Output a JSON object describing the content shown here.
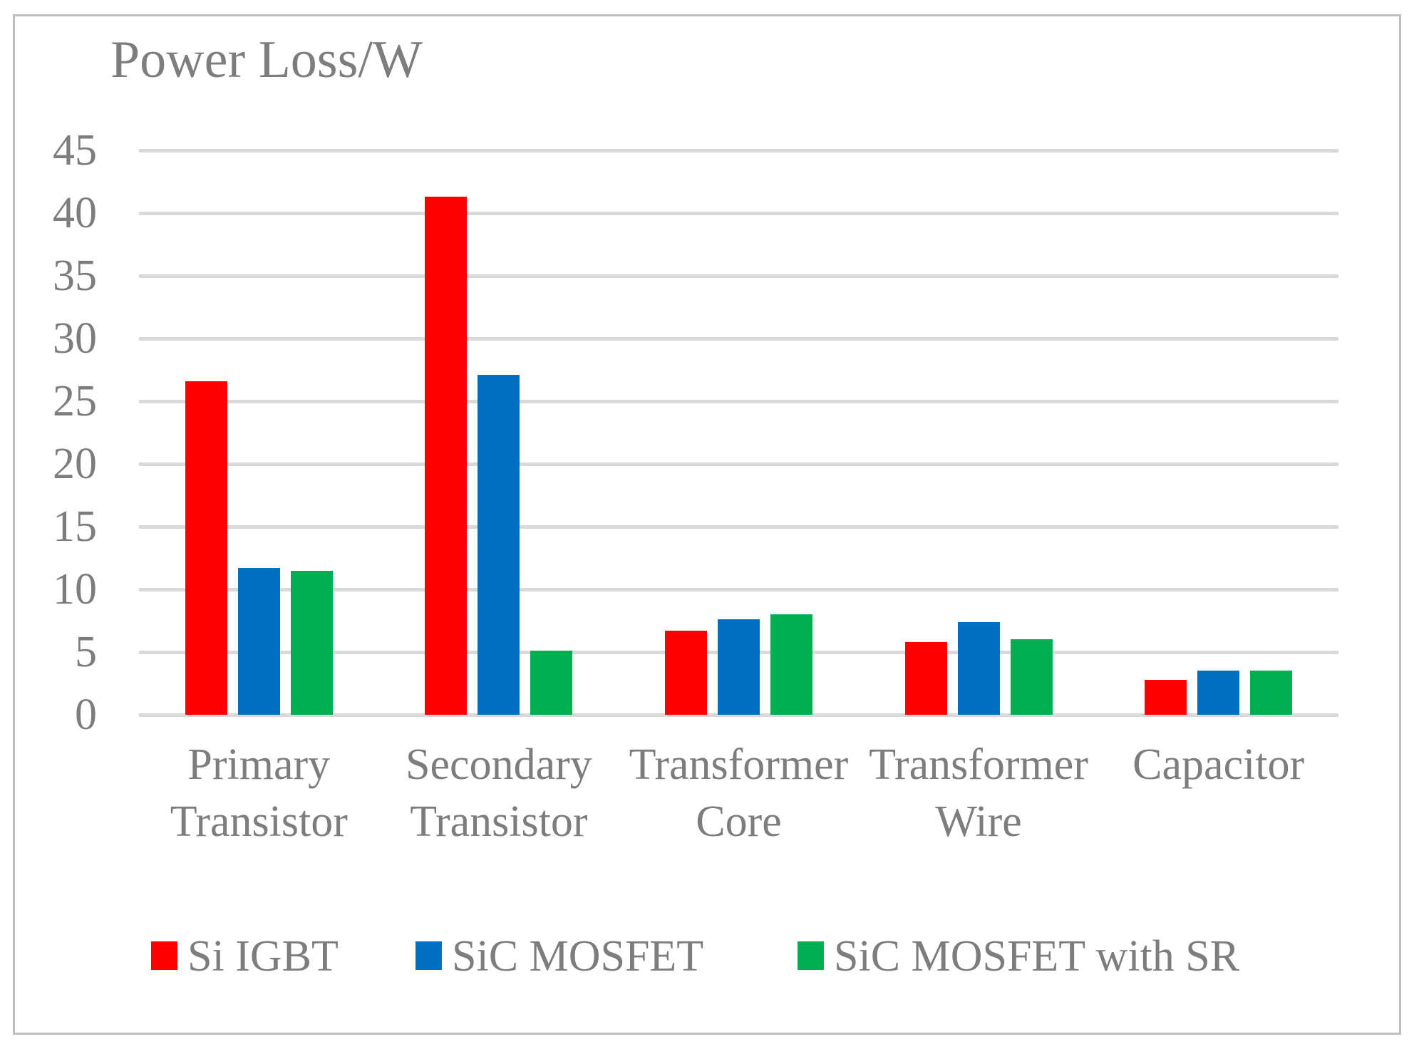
{
  "chart_data": {
    "type": "bar",
    "title": "Power Loss/W",
    "categories": [
      "Primary Transistor",
      "Secondary Transistor",
      "Transformer Core",
      "Transformer Wire",
      "Capacitor"
    ],
    "series": [
      {
        "name": "Si IGBT",
        "color": "#FF0000",
        "values": [
          26.6,
          41.3,
          6.7,
          5.8,
          2.8
        ]
      },
      {
        "name": "SiC MOSFET",
        "color": "#0070C0",
        "values": [
          11.7,
          27.1,
          7.6,
          7.4,
          3.5
        ]
      },
      {
        "name": "SiC MOSFET with SR",
        "color": "#00B050",
        "values": [
          11.5,
          5.1,
          8.0,
          6.0,
          3.5
        ]
      }
    ],
    "ylabel": "",
    "xlabel": "",
    "ylim": [
      0,
      45
    ],
    "yticks": [
      0,
      5,
      10,
      15,
      20,
      25,
      30,
      35,
      40,
      45
    ],
    "grid": true,
    "legend_position": "bottom",
    "gridline_color": "#D9D9D9",
    "axis_text_color": "#7D7D7D",
    "frame_border_color": "#BFBFBF"
  }
}
